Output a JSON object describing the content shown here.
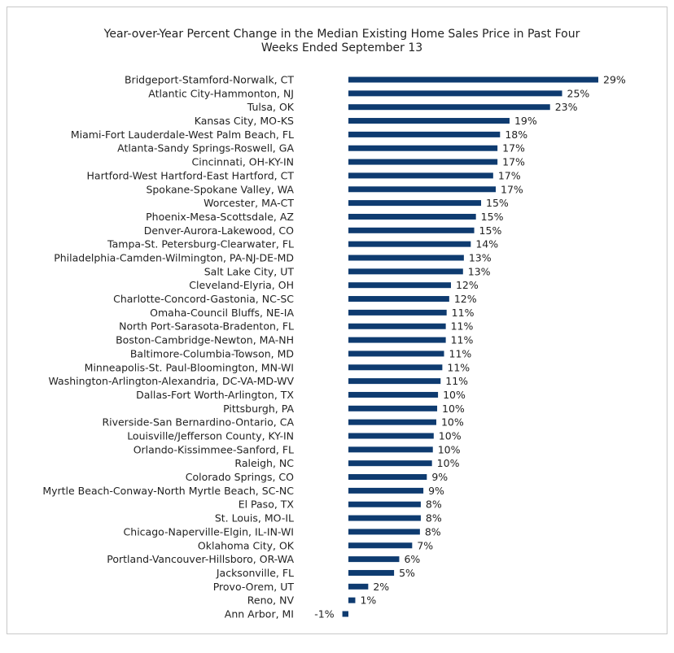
{
  "chart_data": {
    "type": "hbar",
    "title": "Year-over-Year Percent Change in the Median Existing Home Sales Price in Past Four",
    "subtitle": "Weeks Ended September 13",
    "color": "#0e3b70",
    "categories": [
      "Bridgeport-Stamford-Norwalk, CT",
      "Atlantic City-Hammonton, NJ",
      "Tulsa, OK",
      "Kansas City, MO-KS",
      "Miami-Fort Lauderdale-West Palm Beach, FL",
      "Atlanta-Sandy Springs-Roswell, GA",
      "Cincinnati, OH-KY-IN",
      "Hartford-West Hartford-East Hartford, CT",
      "Spokane-Spokane Valley, WA",
      "Worcester, MA-CT",
      "Phoenix-Mesa-Scottsdale, AZ",
      "Denver-Aurora-Lakewood, CO",
      "Tampa-St. Petersburg-Clearwater, FL",
      "Philadelphia-Camden-Wilmington, PA-NJ-DE-MD",
      "Salt Lake City, UT",
      "Cleveland-Elyria, OH",
      "Charlotte-Concord-Gastonia, NC-SC",
      "Omaha-Council Bluffs, NE-IA",
      "North Port-Sarasota-Bradenton, FL",
      "Boston-Cambridge-Newton, MA-NH",
      "Baltimore-Columbia-Towson, MD",
      "Minneapolis-St. Paul-Bloomington, MN-WI",
      "Washington-Arlington-Alexandria, DC-VA-MD-WV",
      "Dallas-Fort Worth-Arlington, TX",
      "Pittsburgh, PA",
      "Riverside-San Bernardino-Ontario, CA",
      "Louisville/Jefferson County, KY-IN",
      "Orlando-Kissimmee-Sanford, FL",
      "Raleigh, NC",
      "Colorado Springs, CO",
      "Myrtle Beach-Conway-North Myrtle Beach, SC-NC",
      "El Paso, TX",
      "St. Louis, MO-IL",
      "Chicago-Naperville-Elgin, IL-IN-WI",
      "Oklahoma City, OK",
      "Portland-Vancouver-Hillsboro, OR-WA",
      "Jacksonville, FL",
      "Provo-Orem, UT",
      "Reno, NV",
      "Ann Arbor, MI"
    ],
    "values": [
      29.0,
      24.8,
      23.4,
      18.7,
      17.6,
      17.3,
      17.3,
      16.8,
      17.1,
      15.4,
      14.8,
      14.6,
      14.2,
      13.4,
      13.3,
      11.9,
      11.7,
      11.4,
      11.3,
      11.3,
      11.1,
      10.9,
      10.7,
      10.4,
      10.3,
      10.2,
      9.9,
      9.8,
      9.7,
      9.1,
      8.7,
      8.4,
      8.4,
      8.3,
      7.4,
      5.9,
      5.3,
      2.3,
      0.8,
      -0.7
    ],
    "value_labels": [
      "29%",
      "25%",
      "23%",
      "19%",
      "18%",
      "17%",
      "17%",
      "17%",
      "17%",
      "15%",
      "15%",
      "15%",
      "14%",
      "13%",
      "13%",
      "12%",
      "12%",
      "11%",
      "11%",
      "11%",
      "11%",
      "11%",
      "11%",
      "10%",
      "10%",
      "10%",
      "10%",
      "10%",
      "10%",
      "9%",
      "9%",
      "8%",
      "8%",
      "8%",
      "7%",
      "6%",
      "5%",
      "2%",
      "1%",
      "-1%"
    ]
  }
}
